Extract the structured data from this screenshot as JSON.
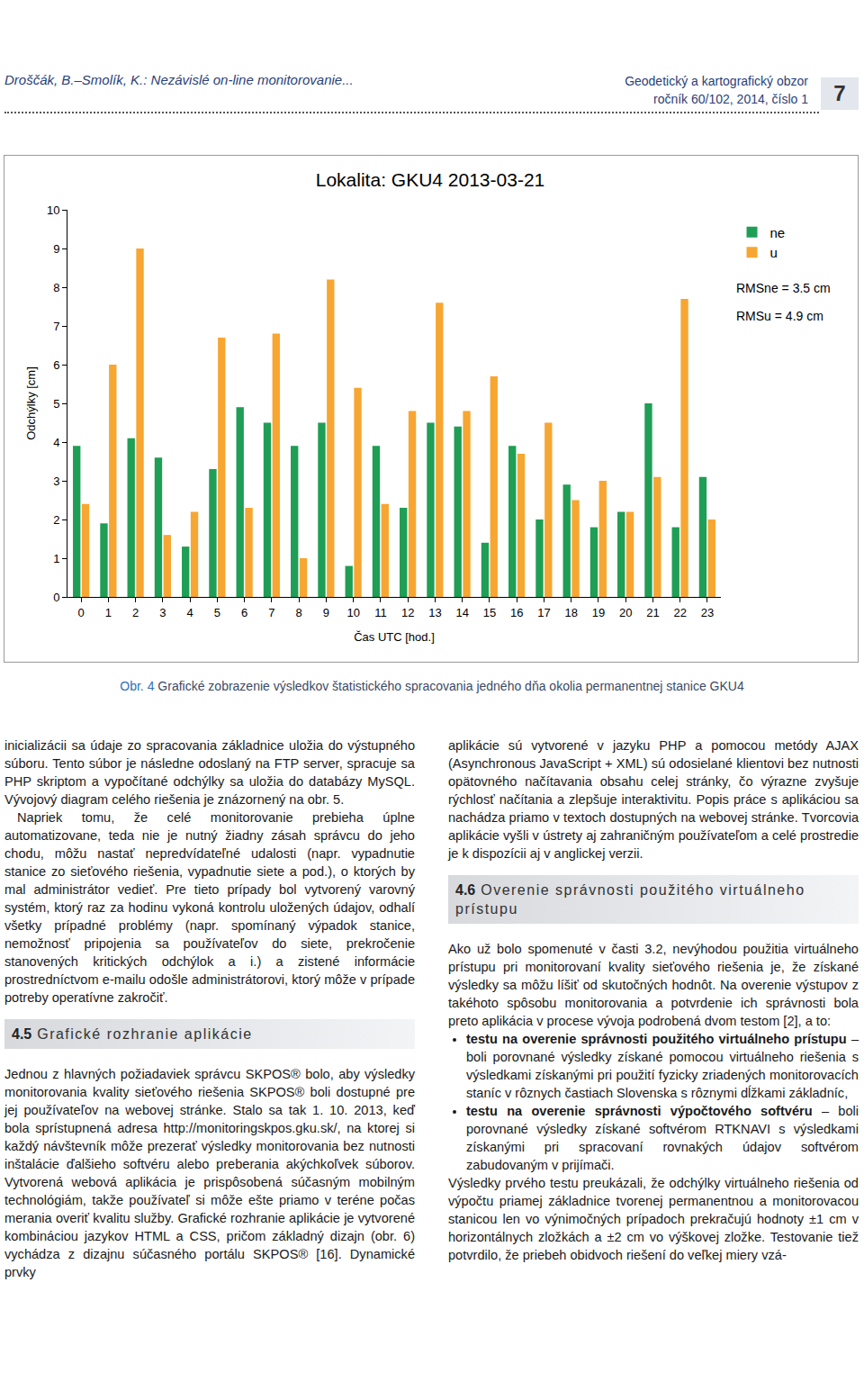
{
  "page": {
    "header": {
      "left": "Droščák, B.–Smolík, K.: Nezávislé on-line monitorovanie...",
      "journal": "Geodetický a kartografický obzor",
      "issue": "ročník 60/102, 2014, číslo 1",
      "page_number": "7"
    },
    "caption": {
      "label": "Obr. 4",
      "text": "Grafické zobrazenie výsledkov štatistického spracovania jedného dňa okolia permanentnej stanice GKU4"
    },
    "left_column": [
      {
        "p": "inicializácii sa údaje zo spracovania základnice uložia do výstupného súboru. Tento súbor je následne odoslaný na FTP server, spracuje sa PHP skriptom a vypočítané odchýlky sa uložia do databázy MySQL. Vývojový diagram celého riešenia je znázornený na obr. 5."
      },
      {
        "p": "Napriek tomu, že celé monitorovanie prebieha úplne automatizovane, teda nie je nutný žiadny zásah správcu do jeho chodu, môžu nastať nepredvídateľné udalosti (napr. vypadnutie stanice zo sieťového riešenia, vypadnutie siete a pod.), o ktorých by mal administrátor vedieť. Pre tieto prípady bol vytvorený varovný systém, ktorý raz za hodinu vykoná kontrolu uložených údajov, odhalí všetky prípadné problémy (napr. spomínaný výpadok stanice, nemožnosť pripojenia sa používateľov do siete, prekročenie stanovených kritických odchýlok a i.) a zistené informácie prostredníctvom e-mailu odošle administrátorovi, ktorý môže v prípade potreby operatívne zakročiť."
      },
      {
        "h": [
          "4.5",
          "Grafické rozhranie aplikácie"
        ]
      },
      {
        "p": "Jednou z hlavných požiadaviek správcu SKPOS® bolo, aby výsledky monitorovania kvality sieťového riešenia SKPOS® boli dostupné pre jej používateľov na webovej stránke. Stalo sa tak 1. 10. 2013, keď bola sprístupnená adresa http://monitoringskpos.gku.sk/, na ktorej si každý návštevník môže prezerať výsledky monitorovania bez nutnosti inštalácie ďalšieho softvéru alebo preberania akýchkoľvek súborov. Vytvorená webová aplikácia je prispôsobená súčasným mobilným technológiám, takže používateľ si môže ešte priamo v teréne počas merania overiť kvalitu služby. Grafické rozhranie aplikácie je vytvorené kombináciou jazykov HTML a CSS, pričom základný dizajn (obr. 6) vychádza z dizajnu súčasného portálu SKPOS® [16]. Dynamické prvky"
      }
    ],
    "right_column": [
      {
        "p": "aplikácie sú vytvorené v jazyku PHP a pomocou metódy AJAX (Asynchronous JavaScript + XML) sú odosielané klientovi bez nutnosti opätovného načítavania obsahu celej stránky, čo výrazne zvyšuje rýchlosť načítania a zlepšuje interaktivitu. Popis práce s aplikáciou sa nachádza priamo v textoch dostupných na webovej stránke. Tvorcovia aplikácie vyšli v ústrety aj zahraničným používateľom a celé prostredie je k dispozícii aj v anglickej verzii."
      },
      {
        "h": [
          "4.6",
          "Overenie správnosti použitého virtuálneho prístupu"
        ]
      },
      {
        "p": "Ako už bolo spomenuté v časti 3.2, nevýhodou použitia virtuálneho prístupu pri monitorovaní kvality sieťového riešenia je, že získané výsledky sa môžu líšiť od skutočných hodnôt. Na overenie výstupov z takéhoto spôsobu monitorovania a potvrdenie ich správnosti bola preto aplikácia v procese vývoja podrobená dvom testom [2], a to:"
      },
      {
        "ul": [
          {
            "bold": "testu na overenie správnosti použitého virtuálneho prístupu",
            "text": " – boli porovnané výsledky získané pomocou virtuálneho riešenia s výsledkami získanými pri použití fyzicky zriadených monitorovacích staníc v rôznych častiach Slovenska s rôznymi dĺžkami základníc,"
          },
          {
            "bold": "testu na overenie správnosti výpočtového softvéru",
            "text": " – boli porovnané výsledky získané softvérom RTKNAVI s výsledkami získanými pri spracovaní rovnakých údajov softvérom zabudovaným v prijímači."
          }
        ]
      },
      {
        "p": "Výsledky prvého testu preukázali, že odchýlky virtuálneho riešenia od výpočtu priamej základnice tvorenej permanentnou a monitorovacou stanicou len vo výnimočných prípadoch prekračujú hodnoty ±1 cm v horizontálnych zložkách a ±2 cm vo výškovej zložke. Testovanie tiež potvrdilo, že priebeh obidvoch riešení do veľkej miery vzá-"
      }
    ]
  },
  "chart_data": {
    "type": "bar",
    "title": "Lokalita: GKU4 2013-03-21",
    "x_label": "Čas UTC [hod.]",
    "y_label": "Odchýlky [cm]",
    "x": [
      0,
      1,
      2,
      3,
      4,
      5,
      6,
      7,
      8,
      9,
      10,
      11,
      12,
      13,
      14,
      15,
      16,
      17,
      18,
      19,
      20,
      21,
      22,
      23
    ],
    "series": [
      {
        "name": "ne",
        "color": "#1f9e55",
        "values": [
          3.9,
          1.9,
          4.1,
          3.6,
          1.3,
          3.3,
          4.9,
          4.5,
          3.9,
          4.5,
          0.8,
          3.9,
          2.3,
          4.5,
          4.4,
          1.4,
          3.9,
          2.0,
          2.9,
          1.8,
          2.2,
          5.0,
          1.8,
          3.1
        ]
      },
      {
        "name": "u",
        "color": "#f7a632",
        "values": [
          2.4,
          6.0,
          9.0,
          1.6,
          2.2,
          6.7,
          2.3,
          6.8,
          1.0,
          8.2,
          5.4,
          2.4,
          4.8,
          7.6,
          4.8,
          5.7,
          3.7,
          4.5,
          2.5,
          3.0,
          2.2,
          3.1,
          7.7,
          2.0
        ]
      }
    ],
    "xlim": [
      -0.5,
      23.5
    ],
    "xticks": [
      0,
      1,
      2,
      3,
      4,
      5,
      6,
      7,
      8,
      9,
      10,
      11,
      12,
      13,
      14,
      15,
      16,
      17,
      18,
      19,
      20,
      21,
      22,
      23
    ],
    "ylim": [
      0,
      10
    ],
    "yticks": [
      0,
      1,
      2,
      3,
      4,
      5,
      6,
      7,
      8,
      9,
      10
    ],
    "grid": false,
    "legend": "right",
    "annotations": [
      "RMSne = 3.5 cm",
      "RMSu = 4.9 cm"
    ]
  }
}
